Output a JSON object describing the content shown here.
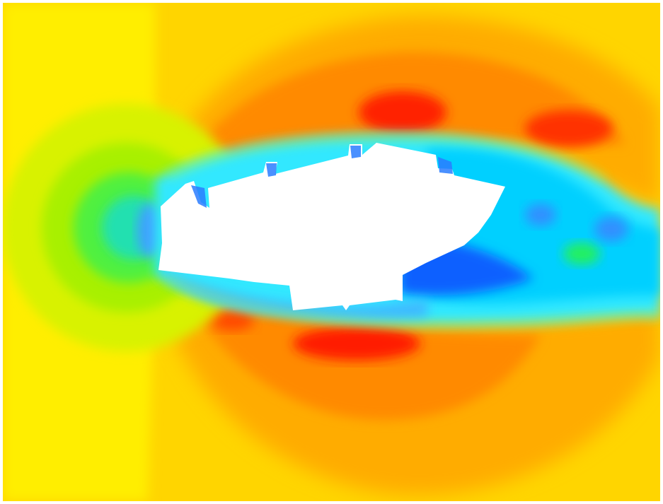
{
  "figure": {
    "kind": "flow-contour-plot",
    "colormap": [
      "#0000ff",
      "#0080ff",
      "#00e0ff",
      "#00ff80",
      "#a0ff00",
      "#ffff00",
      "#ffb000",
      "#ff7000",
      "#ff0000"
    ],
    "background_color": "#ffd400",
    "obstacle_color": "#ffffff"
  },
  "chart_data": {
    "type": "heatmap",
    "title": "",
    "xlabel": "",
    "ylabel": "",
    "legend": "none",
    "grid": false
  }
}
